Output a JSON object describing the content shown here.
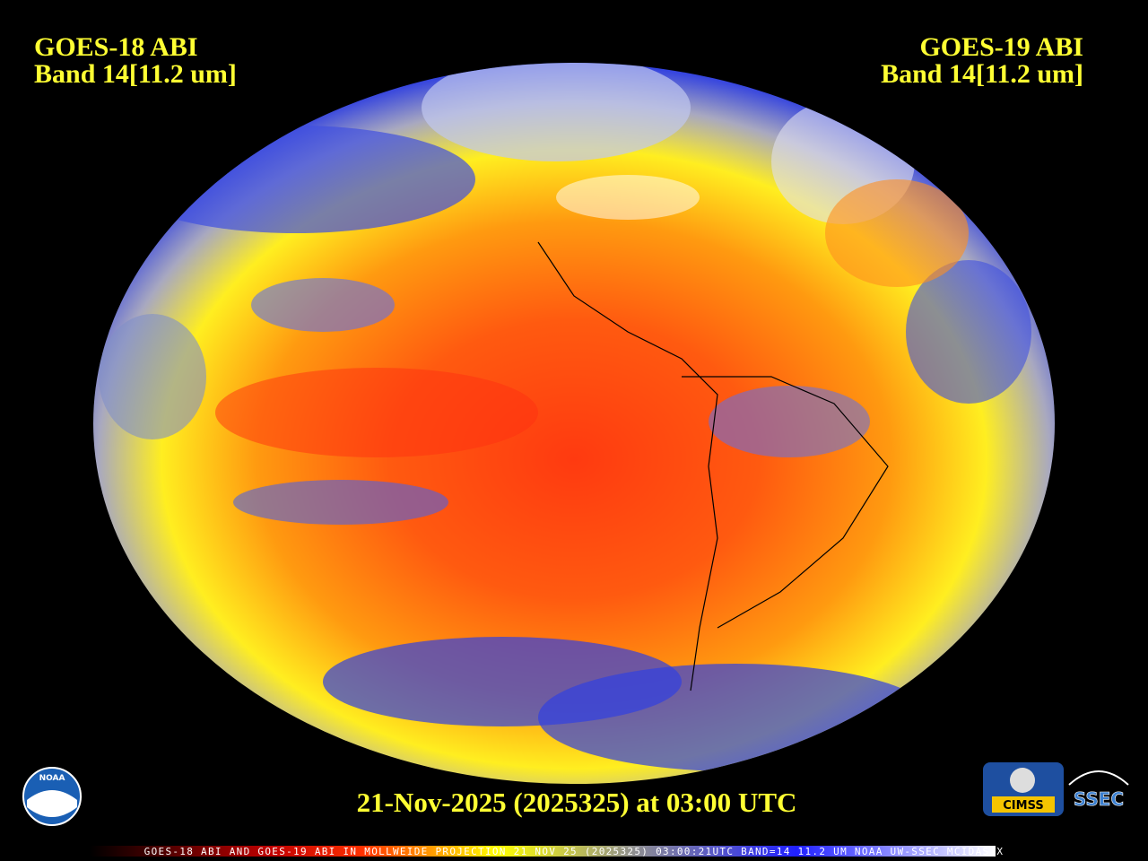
{
  "header": {
    "left": {
      "title": "GOES-18 ABI",
      "band": "Band 14[11.2 um]"
    },
    "right": {
      "title": "GOES-19 ABI",
      "band": "Band 14[11.2 um]"
    }
  },
  "footer": {
    "timestamp": "21-Nov-2025 (2025325) at 03:00 UTC",
    "banner": "GOES-18 ABI AND GOES-19 ABI IN MOLLWEIDE PROJECTION 21 NOV 25 (2025325) 03:00:21UTC BAND=14 11.2 UM NOAA UW-SSEC MCIDAS-X"
  },
  "logos": {
    "noaa": "NOAA",
    "cimss": "CIMSS",
    "ssec": "SSEC"
  }
}
